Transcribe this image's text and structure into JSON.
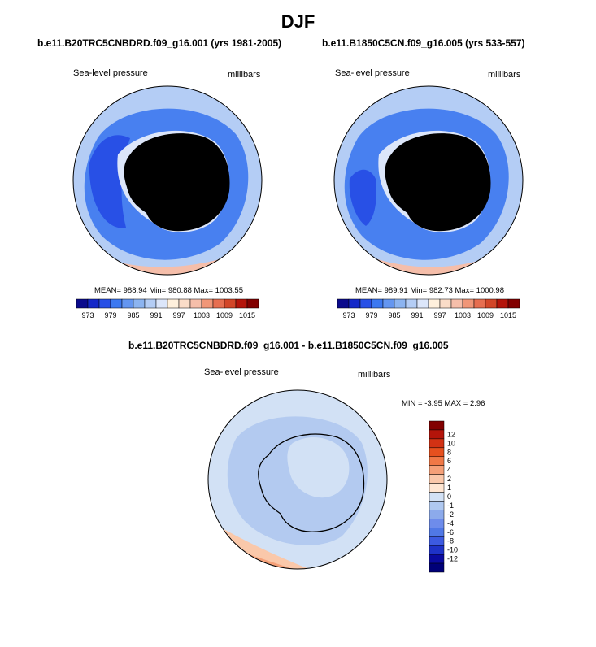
{
  "page": {
    "title": "DJF"
  },
  "panels": [
    {
      "title": "b.e11.B20TRC5CNBDRD.f09_g16.001 (yrs 1981-2005)",
      "variable": "Sea-level pressure",
      "units": "millibars",
      "stats": "MEAN= 988.94  Min= 980.88  Max= 1003.55"
    },
    {
      "title": "b.e11.B1850C5CN.f09_g16.005 (yrs 533-557)",
      "variable": "Sea-level pressure",
      "units": "millibars",
      "stats": "MEAN= 989.91  Min= 982.73  Max= 1000.98"
    },
    {
      "title": "b.e11.B20TRC5CNBDRD.f09_g16.001 - b.e11.B1850C5CN.f09_g16.005",
      "variable": "Sea-level pressure",
      "units": "millibars",
      "stats": "MIN =  -3.95 MAX =   2.96"
    }
  ],
  "colorbars": {
    "absolute": {
      "colors": [
        "#0a0a8c",
        "#1428c8",
        "#2850e6",
        "#3c78f0",
        "#6496f0",
        "#8cb4f0",
        "#b4cdf5",
        "#dce6fa",
        "#fff0dc",
        "#fadcc8",
        "#f5beaa",
        "#f09678",
        "#e66e50",
        "#d24628",
        "#b4140a",
        "#820000"
      ],
      "labels": [
        "973",
        "979",
        "985",
        "991",
        "997",
        "1003",
        "1009",
        "1015"
      ]
    },
    "difference": {
      "colors": [
        "#820000",
        "#b4140a",
        "#d23214",
        "#e6501e",
        "#f07846",
        "#f5a078",
        "#fac8aa",
        "#ffe6d2",
        "#d2e1f5",
        "#afc8f0",
        "#8caaeb",
        "#6e8ceb",
        "#5078e6",
        "#3c5ae1",
        "#1e32c8",
        "#0a0aa0",
        "#000078"
      ],
      "labels": [
        "12",
        "10",
        "8",
        "6",
        "4",
        "2",
        "1",
        "0",
        "-1",
        "-2",
        "-4",
        "-6",
        "-8",
        "-10",
        "-12"
      ]
    }
  },
  "map_colors": {
    "ring_outer": "#b4cdf5",
    "ring_deep": "#3c78f0",
    "ring_deepest": "#2850e6",
    "ice_light": "#dce6fa",
    "ice_warm": "#fadcc8",
    "ice_warmer": "#f5beaa",
    "coast_warm": "#f5beaa",
    "diff_base": "#afc8f0",
    "diff_mid": "#8caaeb",
    "diff_light": "#d2e1f5",
    "diff_warm": "#fac8aa",
    "diff_warmer": "#f5a078"
  }
}
